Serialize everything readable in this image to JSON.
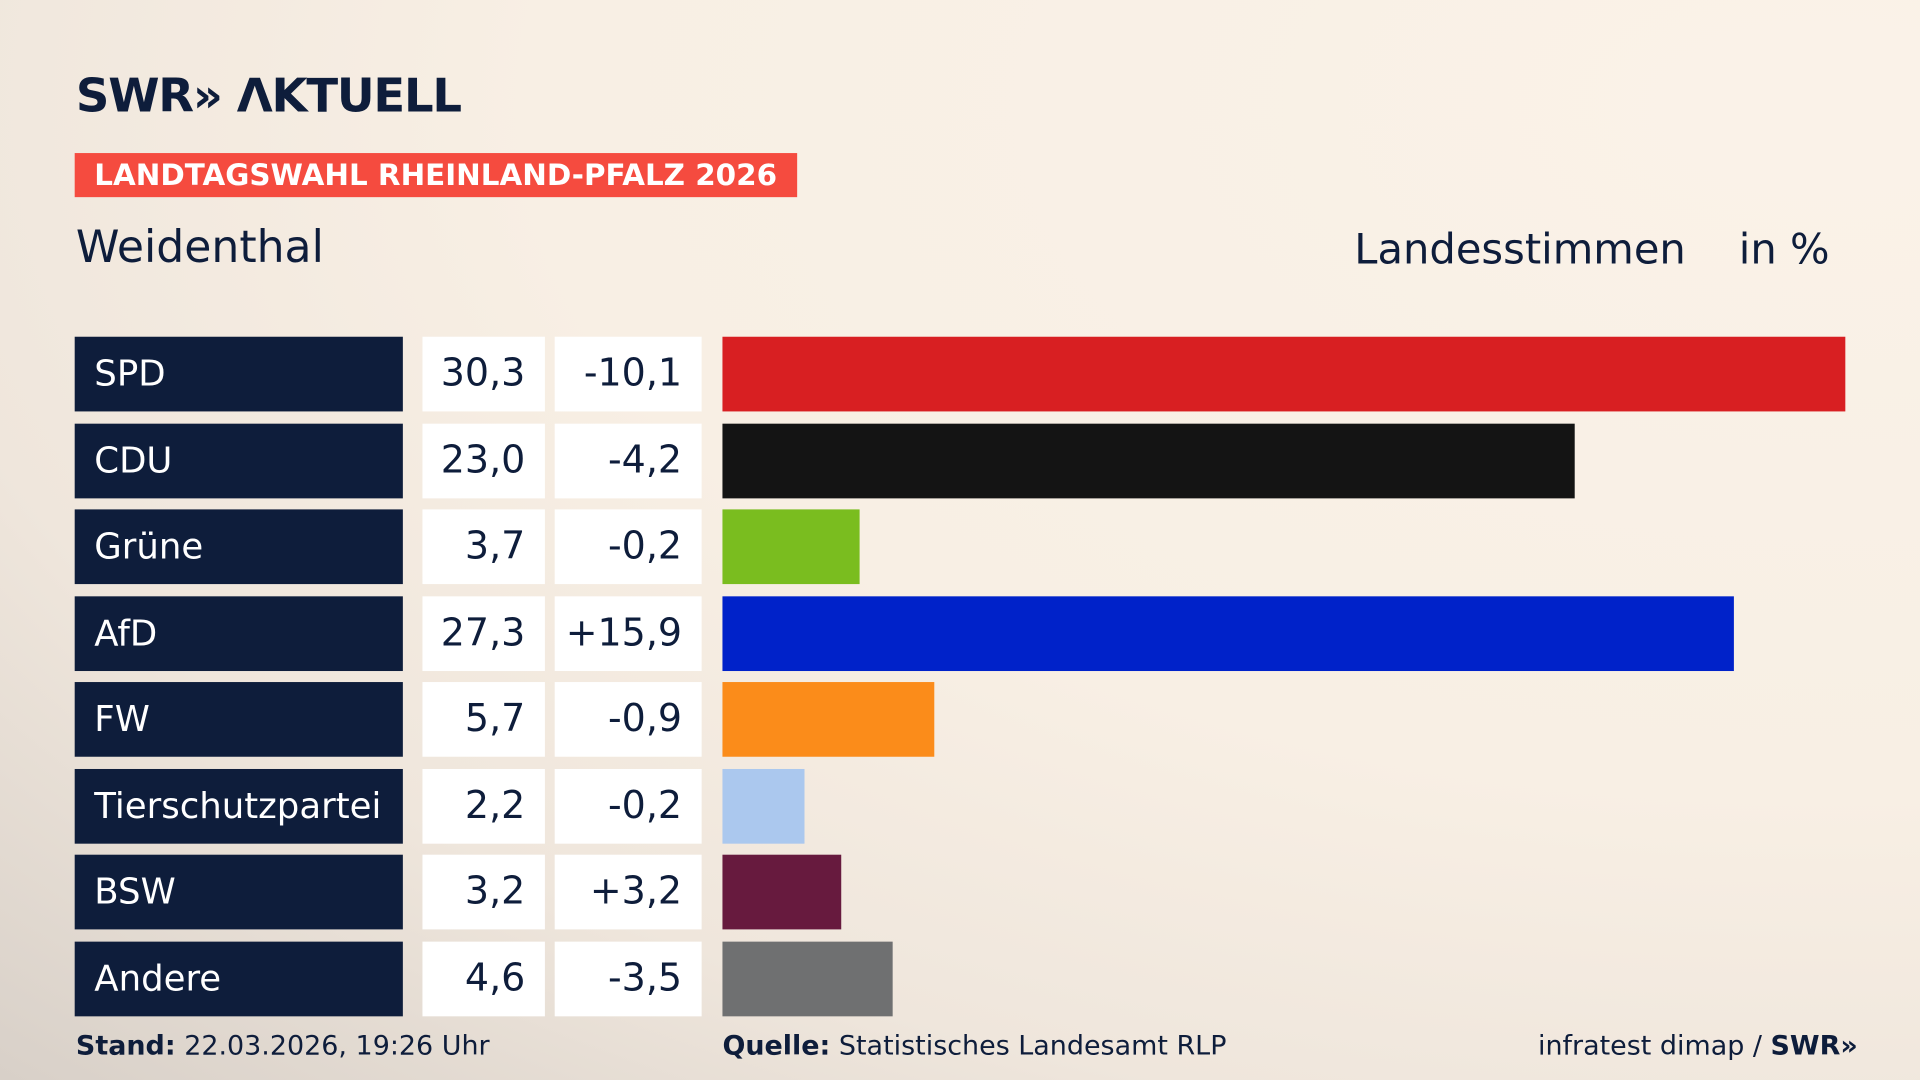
{
  "header": {
    "logo": "SWR» ΛKTUELL",
    "tag": "LANDTAGSWAHL RHEINLAND-PFALZ 2026",
    "place": "Weidenthal",
    "title": "Landesstimmen",
    "unit": "in %"
  },
  "chart_data": {
    "type": "bar",
    "orientation": "horizontal",
    "xlim": [
      0,
      30.3
    ],
    "categories": [
      "SPD",
      "CDU",
      "Grüne",
      "AfD",
      "FW",
      "Tierschutzpartei",
      "BSW",
      "Andere"
    ],
    "values": [
      30.3,
      23.0,
      3.7,
      27.3,
      5.7,
      2.2,
      3.2,
      4.6
    ],
    "value_labels": [
      "30,3",
      "23,0",
      "3,7",
      "27,3",
      "5,7",
      "2,2",
      "3,2",
      "4,6"
    ],
    "diff_labels": [
      "-10,1",
      "-4,2",
      "-0,2",
      "+15,9",
      "-0,9",
      "-0,2",
      "+3,2",
      "-3,5"
    ],
    "colors": [
      "#d81f22",
      "#141414",
      "#7abd1f",
      "#0022c9",
      "#fb8c1a",
      "#abc8ee",
      "#671a3e",
      "#6f7071"
    ]
  },
  "footer": {
    "stand_label": "Stand:",
    "stand": "22.03.2026, 19:26 Uhr",
    "source_label": "Quelle:",
    "source": "Statistisches Landesamt RLP",
    "credit": "infratest dimap / ",
    "credit_logo": "SWR»"
  }
}
